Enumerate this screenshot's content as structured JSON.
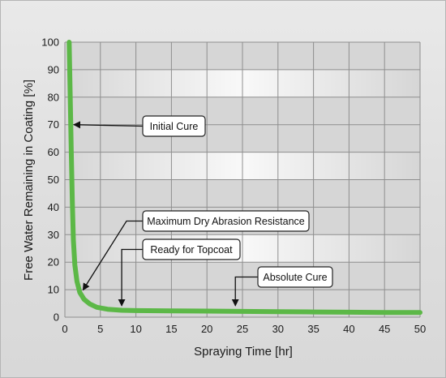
{
  "chart_data": {
    "type": "line",
    "title": "",
    "xlabel": "Spraying Time [hr]",
    "ylabel": "Free Water Remaining in Coating [%]",
    "xlim": [
      0,
      50
    ],
    "ylim": [
      0,
      100
    ],
    "xticks": [
      0,
      5,
      10,
      15,
      20,
      25,
      30,
      35,
      40,
      45,
      50
    ],
    "yticks": [
      0,
      10,
      20,
      30,
      40,
      50,
      60,
      70,
      80,
      90,
      100
    ],
    "grid": true,
    "series": [
      {
        "color": "#5cb847",
        "x": [
          0.6,
          0.75,
          0.9,
          1.05,
          1.2,
          1.4,
          1.7,
          2.1,
          2.7,
          3.5,
          4.5,
          6,
          8,
          10,
          15,
          20,
          25,
          30,
          35,
          40,
          45,
          50
        ],
        "y": [
          100,
          80,
          60,
          42,
          28,
          19,
          13,
          9,
          6.5,
          4.8,
          3.6,
          2.9,
          2.5,
          2.4,
          2.3,
          2.2,
          2.1,
          2.0,
          1.9,
          1.8,
          1.7,
          1.7
        ]
      }
    ],
    "annotations": [
      {
        "label": "Initial Cure",
        "target": [
          0.8,
          70
        ],
        "anchor": "left"
      },
      {
        "label": "Maximum Dry Abrasion Resistance",
        "target": [
          2.1,
          9
        ],
        "anchor": "left"
      },
      {
        "label": "Ready for Topcoat",
        "target": [
          8,
          3
        ],
        "anchor": "left"
      },
      {
        "label": "Absolute Cure",
        "target": [
          24,
          3
        ],
        "anchor": "left"
      }
    ]
  }
}
